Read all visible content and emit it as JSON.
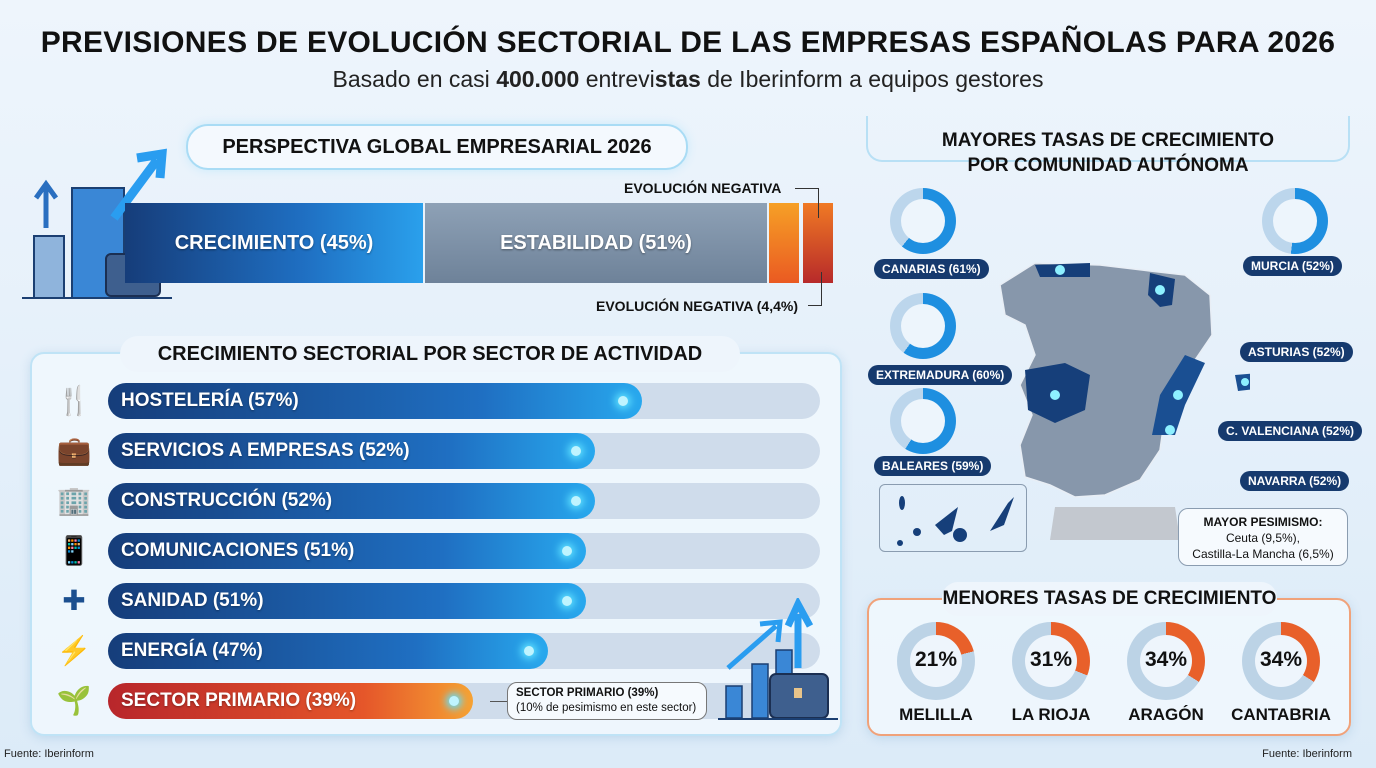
{
  "header": {
    "title": "PREVISIONES DE EVOLUCIÓN SECTORIAL DE LAS EMPRESAS ESPAÑOLAS PARA 2026",
    "subtitle_pre": "Basado en casi ",
    "subtitle_bold": "400.000",
    "subtitle_mid": " entrevi",
    "subtitle_bold2": "stas",
    "subtitle_post": " de Iberinform a equipos gestores"
  },
  "global": {
    "title": "PERSPECTIVA GLOBAL EMPRESARIAL 2026",
    "growth_label": "CRECIMIENTO (45%)",
    "stability_label": "ESTABILIDAD (51%)",
    "negative_top_label": "EVOLUCIÓN NEGATIVA",
    "negative_bottom_label": "EVOLUCIÓN NEGATIVA (4,4%)",
    "colors": {
      "growth": "#1f6fc2",
      "stability": "#7a8ea5",
      "negative1": "#f28a22",
      "negative2": "#c8322a"
    }
  },
  "sectors": {
    "title": "CRECIMIENTO SECTORIAL POR SECTOR DE ACTIVIDAD",
    "callout_line1": "SECTOR PRIMARIO (39%)",
    "callout_line2": "(10% de pesimismo en este sector)"
  },
  "regions": {
    "title_line1": "MAYORES TASAS DE CRECIMIENTO",
    "title_line2": "POR COMUNIDAD AUTÓNOMA",
    "pessimism_title": "MAYOR PESIMISMO:",
    "pessimism_line1": "Ceuta (9,5%),",
    "pessimism_line2": "Castilla-La Mancha (6,5%)"
  },
  "lowest": {
    "title": "MENORES TASAS DE CRECIMIENTO"
  },
  "footer": {
    "source_left": "Fuente: Iberinform",
    "source_right": "Fuente: Iberinform"
  },
  "chart_data": [
    {
      "type": "bar",
      "title": "PERSPECTIVA GLOBAL EMPRESARIAL 2026",
      "orientation": "stacked-horizontal",
      "categories": [
        "CRECIMIENTO",
        "ESTABILIDAD",
        "EVOLUCIÓN NEGATIVA"
      ],
      "values": [
        45,
        51,
        4.4
      ],
      "unit": "%"
    },
    {
      "type": "bar",
      "title": "CRECIMIENTO SECTORIAL POR SECTOR DE ACTIVIDAD",
      "orientation": "horizontal",
      "categories": [
        "HOSTELERÍA",
        "SERVICIOS A EMPRESAS",
        "CONSTRUCCIÓN",
        "COMUNICACIONES",
        "SANIDAD",
        "ENERGÍA",
        "SECTOR PRIMARIO"
      ],
      "labels": [
        "HOSTELERÍA (57%)",
        "SERVICIOS A EMPRESAS (52%)",
        "CONSTRUCCIÓN (52%)",
        "COMUNICACIONES (51%)",
        "SANIDAD (51%)",
        "ENERGÍA (47%)",
        "SECTOR PRIMARIO (39%)"
      ],
      "values": [
        57,
        52,
        52,
        51,
        51,
        47,
        39
      ],
      "icons": [
        "restaurant-icon",
        "briefcase-document-icon",
        "buildings-icon",
        "phone-icon",
        "medical-kit-icon",
        "energy-bolt-icon",
        "plant-icon"
      ],
      "highlight": "SECTOR PRIMARIO",
      "unit": "%"
    },
    {
      "type": "pie",
      "title": "MAYORES TASAS DE CRECIMIENTO POR COMUNIDAD AUTÓNOMA",
      "style": "donut",
      "categories": [
        "CANARIAS",
        "EXTREMADURA",
        "BALEARES",
        "MURCIA",
        "ASTURIAS",
        "C. VALENCIANA",
        "NAVARRA"
      ],
      "labels": [
        "CANARIAS (61%)",
        "EXTREMADURA (60%)",
        "BALEARES (59%)",
        "MURCIA (52%)",
        "ASTURIAS (52%)",
        "C. VALENCIANA (52%)",
        "NAVARRA (52%)"
      ],
      "values": [
        61,
        60,
        59,
        52,
        52,
        52,
        52
      ],
      "color": "#1e8fe0",
      "unit": "%"
    },
    {
      "type": "pie",
      "title": "MENORES TASAS DE CRECIMIENTO",
      "style": "donut",
      "categories": [
        "MELILLA",
        "LA RIOJA",
        "ARAGÓN",
        "CANTABRIA"
      ],
      "labels": [
        "21%",
        "31%",
        "34%",
        "34%"
      ],
      "values": [
        21,
        31,
        34,
        34
      ],
      "color": "#e8602a",
      "unit": "%"
    }
  ]
}
